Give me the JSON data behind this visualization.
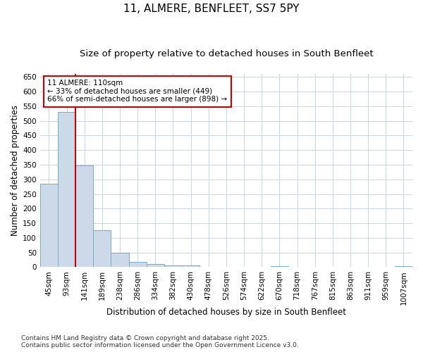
{
  "title": "11, ALMERE, BENFLEET, SS7 5PY",
  "subtitle": "Size of property relative to detached houses in South Benfleet",
  "xlabel": "Distribution of detached houses by size in South Benfleet",
  "ylabel": "Number of detached properties",
  "categories": [
    "45sqm",
    "93sqm",
    "141sqm",
    "189sqm",
    "238sqm",
    "286sqm",
    "334sqm",
    "382sqm",
    "430sqm",
    "478sqm",
    "526sqm",
    "574sqm",
    "622sqm",
    "670sqm",
    "718sqm",
    "767sqm",
    "815sqm",
    "863sqm",
    "911sqm",
    "959sqm",
    "1007sqm"
  ],
  "values": [
    285,
    530,
    347,
    125,
    50,
    18,
    11,
    5,
    5,
    0,
    0,
    0,
    0,
    4,
    0,
    0,
    0,
    0,
    0,
    0,
    4
  ],
  "bar_color": "#ccd9e8",
  "bar_edge_color": "#7aaac8",
  "grid_color": "#c8d4e4",
  "background_color": "#ffffff",
  "annotation_text": "11 ALMERE: 110sqm\n← 33% of detached houses are smaller (449)\n66% of semi-detached houses are larger (898) →",
  "annotation_box_color": "#ffffff",
  "annotation_border_color": "#cc0000",
  "red_line_x": 1.5,
  "ylim": [
    0,
    660
  ],
  "yticks": [
    0,
    50,
    100,
    150,
    200,
    250,
    300,
    350,
    400,
    450,
    500,
    550,
    600,
    650
  ],
  "footer_line1": "Contains HM Land Registry data © Crown copyright and database right 2025.",
  "footer_line2": "Contains public sector information licensed under the Open Government Licence v3.0.",
  "title_fontsize": 11,
  "subtitle_fontsize": 9.5,
  "axis_label_fontsize": 8.5,
  "tick_fontsize": 7.5,
  "annotation_fontsize": 7.5,
  "footer_fontsize": 6.5
}
